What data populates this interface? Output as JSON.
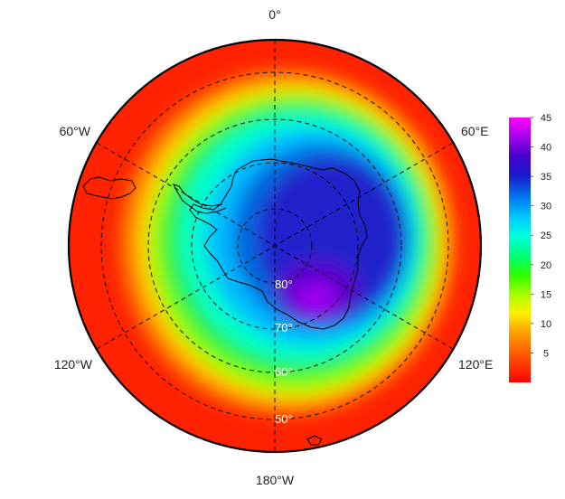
{
  "map": {
    "projection": "south-polar-stereographic",
    "longitude_labels": [
      {
        "id": "0",
        "text": "0°"
      },
      {
        "id": "60e",
        "text": "60°E"
      },
      {
        "id": "120e",
        "text": "120°E"
      },
      {
        "id": "180w",
        "text": "180°W"
      },
      {
        "id": "120w",
        "text": "120°W"
      },
      {
        "id": "60w",
        "text": "60°W"
      }
    ],
    "latitude_labels": [
      {
        "id": "80",
        "text": "80°",
        "lat": -80
      },
      {
        "id": "70",
        "text": "70°",
        "lat": -70
      },
      {
        "id": "60",
        "text": "60°",
        "lat": -60
      },
      {
        "id": "50",
        "text": "50°",
        "lat": -50
      }
    ],
    "latitude_circles": [
      -80,
      -70,
      -60,
      -50
    ],
    "meridians": [
      0,
      60,
      120,
      180,
      -120,
      -60
    ],
    "colorbar": {
      "min": 0,
      "max": 45,
      "ticks": [
        "5",
        "10",
        "15",
        "20",
        "25",
        "30",
        "35",
        "40",
        "45"
      ],
      "colors": [
        "#ff0000",
        "#ff4000",
        "#ff8000",
        "#ffcc00",
        "#ffff00",
        "#b3ff00",
        "#33ff00",
        "#00ff66",
        "#00ffcc",
        "#00ddff",
        "#0099ff",
        "#0044dd",
        "#1a1acc",
        "#4000cc",
        "#8800dd",
        "#cc00ee",
        "#ff00ff"
      ]
    }
  }
}
